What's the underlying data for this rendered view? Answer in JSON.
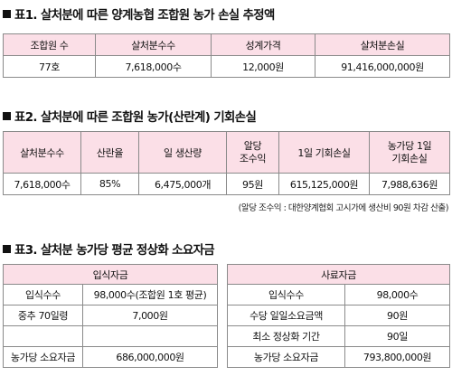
{
  "table1": {
    "title": "표1. 살처분에 따른 양계농협 조합원 농가 손실 추정액",
    "headers": [
      "조합원 수",
      "살처분수수",
      "성계가격",
      "살처분손실"
    ],
    "row": [
      "77호",
      "7,618,000수",
      "12,000원",
      "91,416,000,000원"
    ]
  },
  "table2": {
    "title": "표2. 살처분에 따른 조합원 농가(산란계) 기회손실",
    "headers": [
      "살처분수수",
      "산란율",
      "일 생산량",
      "알당\n조수익",
      "1일 기회손실",
      "농가당 1일\n기회손실"
    ],
    "row": [
      "7,618,000수",
      "85%",
      "6,475,000개",
      "95원",
      "615,125,000원",
      "7,988,636원"
    ],
    "note": "(알당 조수익 : 대한양계협회 고시가에 생산비 90원 차감 산출)"
  },
  "table3": {
    "title": "표3. 살처분 농가당 평균 정상화 소요자금",
    "left": {
      "header": "입식자금",
      "rows": [
        [
          "입식수수",
          "98,000수(조합원 1호 평균)"
        ],
        [
          "중추 70일령",
          "7,000원"
        ],
        [
          "",
          ""
        ],
        [
          "농가당 소요자금",
          "686,000,000원"
        ]
      ]
    },
    "right": {
      "header": "사료자금",
      "rows": [
        [
          "입식수수",
          "98,000수"
        ],
        [
          "수당 일일소요금액",
          "90원"
        ],
        [
          "최소 정상화 기간",
          "90일"
        ],
        [
          "농가당 소요자금",
          "793,800,000원"
        ]
      ]
    }
  }
}
